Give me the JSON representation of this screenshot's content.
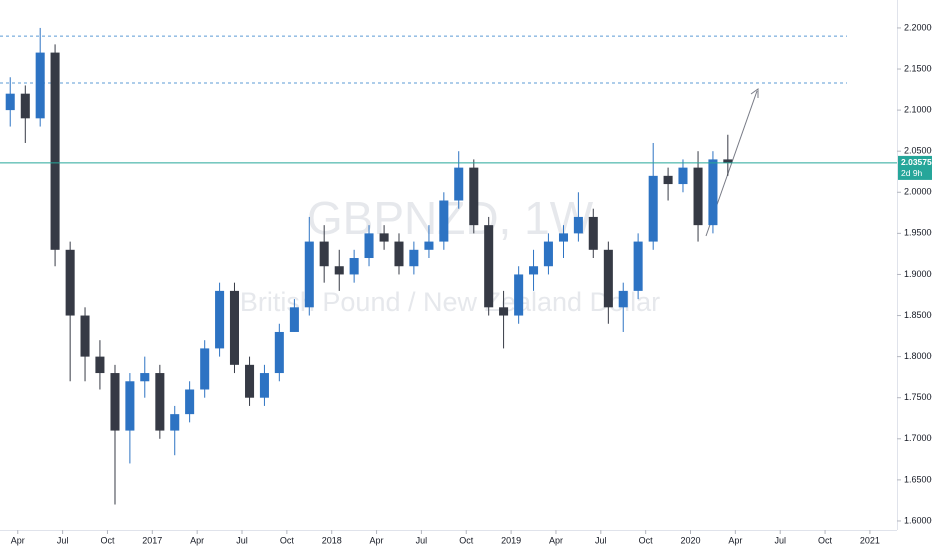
{
  "chart_data": {
    "type": "candlestick",
    "title": "GBPNZD, 1W",
    "subtitle": "British Pound / New Zealand Dollar",
    "up_color": "#2d73c3",
    "down_color": "#363a45",
    "x": [
      2016.208,
      2016.292,
      2016.375,
      2016.458,
      2016.542,
      2016.625,
      2016.708,
      2016.792,
      2016.875,
      2016.958,
      2017.042,
      2017.125,
      2017.208,
      2017.292,
      2017.375,
      2017.458,
      2017.542,
      2017.625,
      2017.708,
      2017.792,
      2017.875,
      2017.958,
      2018.042,
      2018.125,
      2018.208,
      2018.292,
      2018.375,
      2018.458,
      2018.542,
      2018.625,
      2018.708,
      2018.792,
      2018.875,
      2018.958,
      2019.042,
      2019.125,
      2019.208,
      2019.292,
      2019.375,
      2019.458,
      2019.542,
      2019.625,
      2019.708,
      2019.792,
      2019.875,
      2019.958,
      2020.042,
      2020.125,
      2020.208
    ],
    "open": [
      2.1,
      2.12,
      2.09,
      2.17,
      1.93,
      1.85,
      1.8,
      1.78,
      1.71,
      1.77,
      1.78,
      1.71,
      1.73,
      1.76,
      1.81,
      1.88,
      1.79,
      1.75,
      1.78,
      1.83,
      1.86,
      1.94,
      1.91,
      1.9,
      1.92,
      1.95,
      1.94,
      1.91,
      1.93,
      1.94,
      1.99,
      2.03,
      1.96,
      1.86,
      1.85,
      1.9,
      1.91,
      1.94,
      1.95,
      1.97,
      1.93,
      1.86,
      1.88,
      1.94,
      2.02,
      2.01,
      2.03,
      1.96,
      2.04
    ],
    "high": [
      2.14,
      2.13,
      2.2,
      2.18,
      1.94,
      1.86,
      1.82,
      1.79,
      1.78,
      1.8,
      1.79,
      1.74,
      1.77,
      1.82,
      1.89,
      1.89,
      1.8,
      1.79,
      1.84,
      1.87,
      1.97,
      1.96,
      1.93,
      1.93,
      1.96,
      1.96,
      1.95,
      1.94,
      1.96,
      2.0,
      2.05,
      2.04,
      1.97,
      1.88,
      1.91,
      1.93,
      1.95,
      1.96,
      2.0,
      1.98,
      1.94,
      1.89,
      1.95,
      2.06,
      2.03,
      2.04,
      2.05,
      2.05,
      2.07
    ],
    "low": [
      2.08,
      2.06,
      2.08,
      1.91,
      1.77,
      1.77,
      1.76,
      1.62,
      1.67,
      1.75,
      1.7,
      1.68,
      1.72,
      1.75,
      1.8,
      1.78,
      1.74,
      1.74,
      1.77,
      1.83,
      1.85,
      1.89,
      1.88,
      1.89,
      1.91,
      1.93,
      1.9,
      1.9,
      1.92,
      1.93,
      1.98,
      1.95,
      1.85,
      1.81,
      1.84,
      1.88,
      1.9,
      1.92,
      1.94,
      1.92,
      1.84,
      1.83,
      1.87,
      1.93,
      1.99,
      2.0,
      1.94,
      1.95,
      2.02
    ],
    "close": [
      2.12,
      2.09,
      2.17,
      1.93,
      1.85,
      1.8,
      1.78,
      1.71,
      1.77,
      1.78,
      1.71,
      1.73,
      1.76,
      1.81,
      1.88,
      1.79,
      1.75,
      1.78,
      1.83,
      1.86,
      1.94,
      1.91,
      1.9,
      1.92,
      1.95,
      1.94,
      1.91,
      1.93,
      1.94,
      1.99,
      2.03,
      1.96,
      1.86,
      1.85,
      1.9,
      1.91,
      1.94,
      1.95,
      1.97,
      1.93,
      1.86,
      1.88,
      1.94,
      2.02,
      2.01,
      2.03,
      1.96,
      2.04,
      2.03575
    ],
    "xlim": [
      2016.151,
      2021.151
    ],
    "xticks": [
      {
        "value": 2016.25,
        "label": "Apr"
      },
      {
        "value": 2016.5,
        "label": "Jul"
      },
      {
        "value": 2016.75,
        "label": "Oct"
      },
      {
        "value": 2017,
        "label": "2017"
      },
      {
        "value": 2017.25,
        "label": "Apr"
      },
      {
        "value": 2017.5,
        "label": "Jul"
      },
      {
        "value": 2017.75,
        "label": "Oct"
      },
      {
        "value": 2018,
        "label": "2018"
      },
      {
        "value": 2018.25,
        "label": "Apr"
      },
      {
        "value": 2018.5,
        "label": "Jul"
      },
      {
        "value": 2018.75,
        "label": "Oct"
      },
      {
        "value": 2019,
        "label": "2019"
      },
      {
        "value": 2019.25,
        "label": "Apr"
      },
      {
        "value": 2019.5,
        "label": "Jul"
      },
      {
        "value": 2019.75,
        "label": "Oct"
      },
      {
        "value": 2020,
        "label": "2020"
      },
      {
        "value": 2020.25,
        "label": "Apr"
      },
      {
        "value": 2020.5,
        "label": "Jul"
      },
      {
        "value": 2020.75,
        "label": "Oct"
      },
      {
        "value": 2021,
        "label": "2021"
      }
    ],
    "ylim": [
      1.589,
      2.234
    ],
    "yticks": [
      {
        "value": 1.6,
        "label": "1.60000"
      },
      {
        "value": 1.65,
        "label": "1.65000"
      },
      {
        "value": 1.7,
        "label": "1.70000"
      },
      {
        "value": 1.75,
        "label": "1.75000"
      },
      {
        "value": 1.8,
        "label": "1.80000"
      },
      {
        "value": 1.85,
        "label": "1.85000"
      },
      {
        "value": 1.9,
        "label": "1.90000"
      },
      {
        "value": 1.95,
        "label": "1.95000"
      },
      {
        "value": 2.0,
        "label": "2.00000"
      },
      {
        "value": 2.05,
        "label": "2.05000"
      },
      {
        "value": 2.1,
        "label": "2.10000"
      },
      {
        "value": 2.15,
        "label": "2.15000"
      },
      {
        "value": 2.2,
        "label": "2.20000"
      }
    ],
    "levels": [
      {
        "value": 2.19,
        "color": "#5b9bd5"
      },
      {
        "value": 2.133,
        "color": "#5b9bd5"
      }
    ],
    "last_price": 2.03575,
    "last_price_color": "#26a69a",
    "countdown": "2d 9h"
  }
}
